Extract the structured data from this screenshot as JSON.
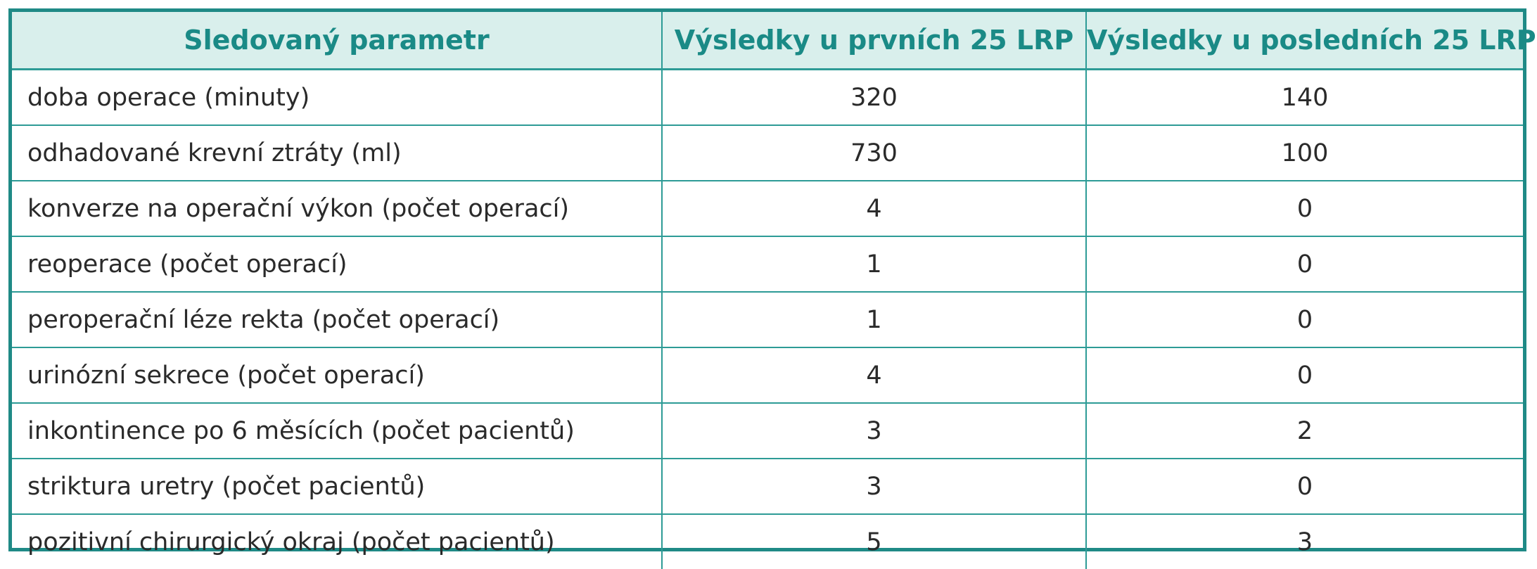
{
  "table": {
    "headers": [
      "Sledovaný parametr",
      "Výsledky u prvních 25 LRP",
      "Výsledky u posledních 25 LRP"
    ],
    "rows": [
      {
        "parameter": "doba operace (minuty)",
        "first25": "320",
        "last25": "140"
      },
      {
        "parameter": "odhadované krevní ztráty (ml)",
        "first25": "730",
        "last25": "100"
      },
      {
        "parameter": "konverze na operační výkon (počet operací)",
        "first25": "4",
        "last25": "0"
      },
      {
        "parameter": "reoperace (počet operací)",
        "first25": "1",
        "last25": "0"
      },
      {
        "parameter": "peroperační léze rekta (počet operací)",
        "first25": "1",
        "last25": "0"
      },
      {
        "parameter": "urinózní sekrece (počet operací)",
        "first25": "4",
        "last25": "0"
      },
      {
        "parameter": "inkontinence po 6 měsících (počet pacientů)",
        "first25": "3",
        "last25": "2"
      },
      {
        "parameter": "striktura uretry (počet pacientů)",
        "first25": "3",
        "last25": "0"
      },
      {
        "parameter": "pozitivní chirurgický okraj (počet pacientů)",
        "first25": "5",
        "last25": "3"
      }
    ]
  },
  "colors": {
    "border": "#1f8a86",
    "header_background": "#d9efec",
    "header_text": "#1a8a86",
    "body_text": "#2a2a2a"
  }
}
